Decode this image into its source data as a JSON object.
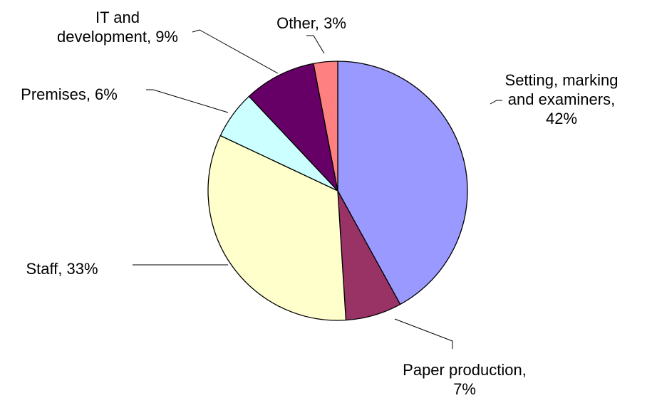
{
  "chart_data": {
    "type": "pie",
    "title": "",
    "start_angle_deg": 0,
    "direction": "clockwise",
    "slices": [
      {
        "label": "Setting, marking and examiners",
        "value": 42,
        "display": [
          "Setting, marking",
          "and examiners,",
          "42%"
        ],
        "color": "#9999ff"
      },
      {
        "label": "Paper production",
        "value": 7,
        "display": [
          "Paper production,",
          "7%"
        ],
        "color": "#993366"
      },
      {
        "label": "Staff",
        "value": 33,
        "display": [
          "Staff, 33%"
        ],
        "color": "#ffffcc"
      },
      {
        "label": "Premises",
        "value": 6,
        "display": [
          "Premises, 6%"
        ],
        "color": "#ccffff"
      },
      {
        "label": "IT and development",
        "value": 9,
        "display": [
          "IT and",
          "development, 9%"
        ],
        "color": "#660066"
      },
      {
        "label": "Other",
        "value": 3,
        "display": [
          "Other, 3%"
        ],
        "color": "#ff8080"
      }
    ]
  }
}
